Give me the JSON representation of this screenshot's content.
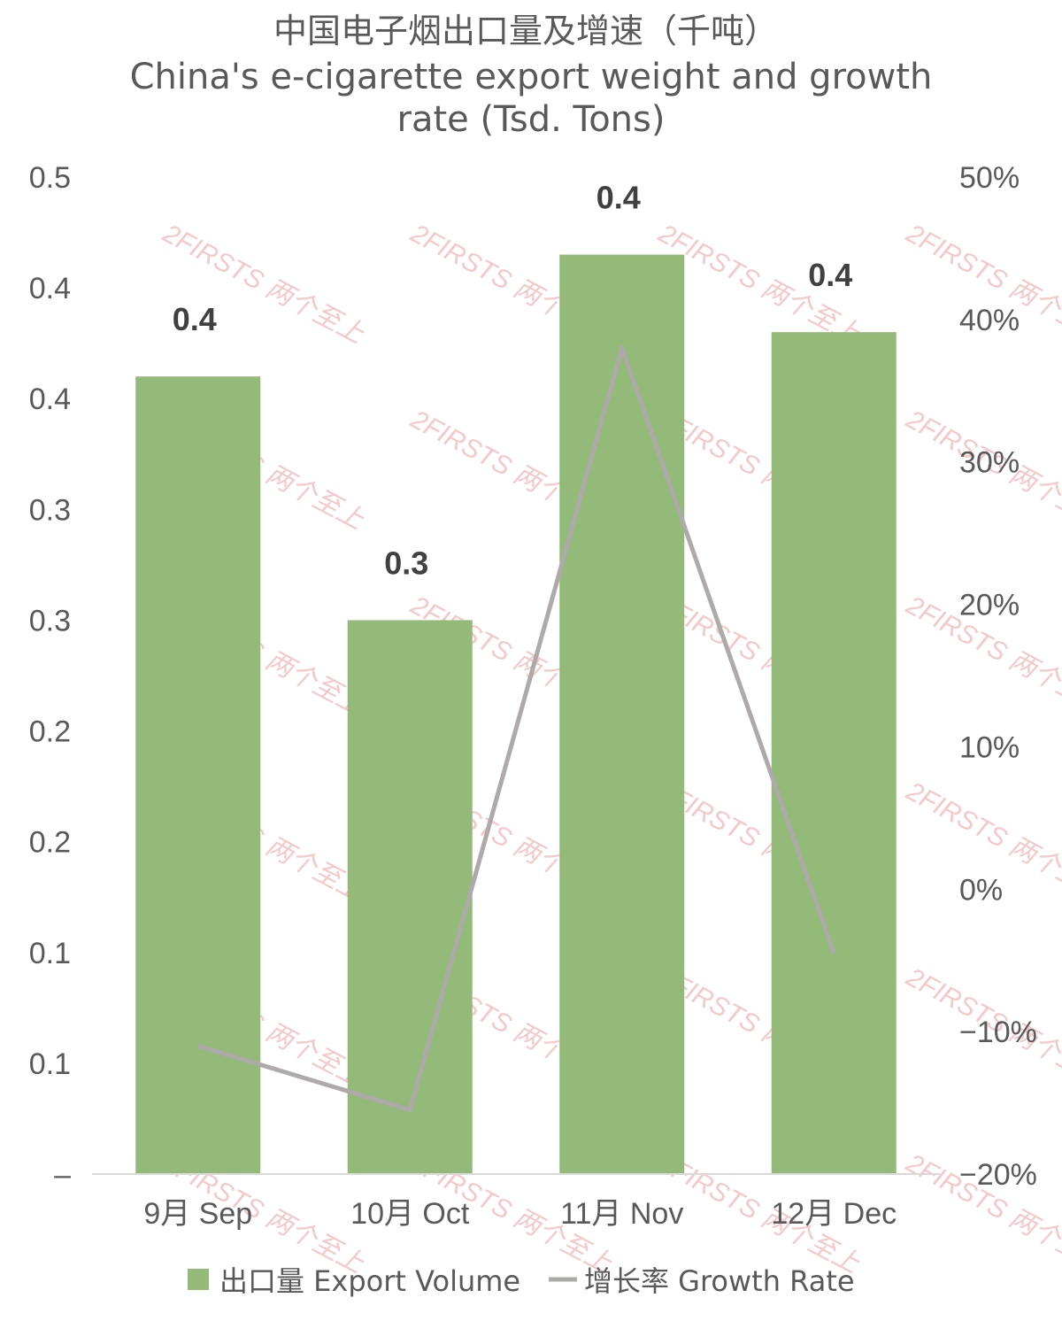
{
  "chart_data": {
    "type": "bar",
    "title": "中国电子烟出口量及增速（千吨）",
    "subtitle_line1": "China's e-cigarette export weight and growth",
    "subtitle_line2": "rate (Tsd. Tons)",
    "categories": [
      "9月 Sep",
      "10月 Oct",
      "11月 Nov",
      "12月 Dec"
    ],
    "series": [
      {
        "name": "出口量 Export Volume",
        "type": "bar",
        "axis": "left",
        "values": [
          0.36,
          0.25,
          0.415,
          0.38
        ],
        "data_labels": [
          "0.4",
          "0.3",
          "0.4",
          "0.4"
        ],
        "color": "#93ba78"
      },
      {
        "name": "增长率 Growth Rate",
        "type": "line",
        "axis": "right",
        "values": [
          -11,
          -15.5,
          38,
          -4.5
        ],
        "color": "#aeaaaa"
      }
    ],
    "left_axis": {
      "ylim": [
        0,
        0.45
      ],
      "ticks": [
        0,
        0.05,
        0.1,
        0.15,
        0.2,
        0.25,
        0.3,
        0.35,
        0.4,
        0.45
      ],
      "tick_labels": [
        "–",
        "0.1",
        "0.1",
        "0.2",
        "0.2",
        "0.3",
        "0.3",
        "0.4",
        "0.4",
        "0.5"
      ]
    },
    "right_axis": {
      "ylim": [
        -20,
        50
      ],
      "ticks": [
        -20,
        -10,
        0,
        10,
        20,
        30,
        40,
        50
      ],
      "tick_labels": [
        "−20%",
        "−10%",
        "0%",
        "10%",
        "20%",
        "30%",
        "40%",
        "50%"
      ]
    },
    "grid": false,
    "legend_position": "bottom",
    "watermark": "2FIRSTS 两个至上"
  }
}
